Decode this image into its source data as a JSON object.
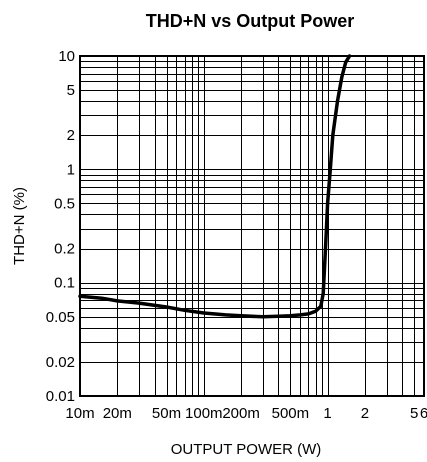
{
  "chart_data": {
    "type": "line",
    "title": "THD+N vs Output Power",
    "xlabel": "OUTPUT POWER (W)",
    "ylabel": "THD+N (%)",
    "x_scale": "log",
    "y_scale": "log",
    "xlim": [
      0.01,
      6
    ],
    "ylim": [
      0.01,
      10
    ],
    "grid": true,
    "x_ticks": [
      {
        "value": 0.01,
        "label": "10m"
      },
      {
        "value": 0.02,
        "label": "20m"
      },
      {
        "value": 0.05,
        "label": "50m"
      },
      {
        "value": 0.1,
        "label": "100m"
      },
      {
        "value": 0.2,
        "label": "200m"
      },
      {
        "value": 0.5,
        "label": "500m"
      },
      {
        "value": 1,
        "label": "1"
      },
      {
        "value": 2,
        "label": "2"
      },
      {
        "value": 5,
        "label": "5"
      },
      {
        "value": 6,
        "label": "6"
      }
    ],
    "y_ticks": [
      {
        "value": 10,
        "label": "10"
      },
      {
        "value": 5,
        "label": "5"
      },
      {
        "value": 2,
        "label": "2"
      },
      {
        "value": 1,
        "label": "1"
      },
      {
        "value": 0.5,
        "label": "0.5"
      },
      {
        "value": 0.2,
        "label": "0.2"
      },
      {
        "value": 0.1,
        "label": "0.1"
      },
      {
        "value": 0.05,
        "label": "0.05"
      },
      {
        "value": 0.02,
        "label": "0.02"
      },
      {
        "value": 0.01,
        "label": "0.01"
      }
    ],
    "series": [
      {
        "x": [
          0.01,
          0.015,
          0.02,
          0.03,
          0.05,
          0.07,
          0.1,
          0.15,
          0.2,
          0.3,
          0.4,
          0.5,
          0.6,
          0.7,
          0.8,
          0.88,
          0.92,
          0.96,
          1.0,
          1.05,
          1.1,
          1.2,
          1.3,
          1.4,
          1.5
        ],
        "y": [
          0.076,
          0.073,
          0.069,
          0.066,
          0.061,
          0.057,
          0.054,
          0.052,
          0.051,
          0.05,
          0.0505,
          0.051,
          0.052,
          0.053,
          0.056,
          0.062,
          0.08,
          0.2,
          0.5,
          1.0,
          2.0,
          4.0,
          6.5,
          8.8,
          10
        ]
      }
    ]
  }
}
